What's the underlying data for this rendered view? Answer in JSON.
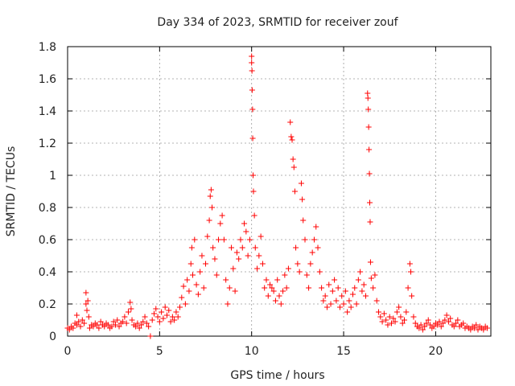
{
  "chart_data": {
    "type": "scatter",
    "title": "Day 334 of 2023, SRMTID for receiver zouf",
    "xlabel": "GPS time / hours",
    "ylabel": "SRMTID / TECUs",
    "xlim": [
      0,
      23
    ],
    "ylim": [
      0,
      1.8
    ],
    "grid": true,
    "marker": "+",
    "series_color": "#ff0000",
    "x_ticks": [
      {
        "value": 0,
        "label": "0"
      },
      {
        "value": 5,
        "label": "5"
      },
      {
        "value": 10,
        "label": "10"
      },
      {
        "value": 15,
        "label": "15"
      },
      {
        "value": 20,
        "label": "20"
      }
    ],
    "y_ticks": [
      {
        "value": 0,
        "label": "0"
      },
      {
        "value": 0.2,
        "label": "0.2"
      },
      {
        "value": 0.4,
        "label": "0.4"
      },
      {
        "value": 0.6,
        "label": "0.6"
      },
      {
        "value": 0.8,
        "label": "0.8"
      },
      {
        "value": 1.0,
        "label": "1"
      },
      {
        "value": 1.2,
        "label": "1.2"
      },
      {
        "value": 1.4,
        "label": "1.4"
      },
      {
        "value": 1.6,
        "label": "1.6"
      },
      {
        "value": 1.8,
        "label": "1.8"
      }
    ],
    "series": [
      {
        "name": "SRMTID",
        "points": [
          [
            0.0,
            0.05
          ],
          [
            0.1,
            0.04
          ],
          [
            0.2,
            0.06
          ],
          [
            0.3,
            0.05
          ],
          [
            0.4,
            0.08
          ],
          [
            0.5,
            0.07
          ],
          [
            0.5,
            0.13
          ],
          [
            0.6,
            0.09
          ],
          [
            0.7,
            0.06
          ],
          [
            0.8,
            0.1
          ],
          [
            0.9,
            0.08
          ],
          [
            1.0,
            0.27
          ],
          [
            1.0,
            0.2
          ],
          [
            1.05,
            0.16
          ],
          [
            1.1,
            0.22
          ],
          [
            1.15,
            0.12
          ],
          [
            1.2,
            0.05
          ],
          [
            1.3,
            0.07
          ],
          [
            1.4,
            0.06
          ],
          [
            1.5,
            0.08
          ],
          [
            1.6,
            0.07
          ],
          [
            1.7,
            0.05
          ],
          [
            1.8,
            0.09
          ],
          [
            1.9,
            0.07
          ],
          [
            2.0,
            0.06
          ],
          [
            2.1,
            0.08
          ],
          [
            2.2,
            0.07
          ],
          [
            2.3,
            0.05
          ],
          [
            2.4,
            0.06
          ],
          [
            2.5,
            0.09
          ],
          [
            2.6,
            0.07
          ],
          [
            2.7,
            0.1
          ],
          [
            2.8,
            0.06
          ],
          [
            2.9,
            0.08
          ],
          [
            3.0,
            0.09
          ],
          [
            3.1,
            0.12
          ],
          [
            3.2,
            0.08
          ],
          [
            3.3,
            0.15
          ],
          [
            3.4,
            0.21
          ],
          [
            3.45,
            0.17
          ],
          [
            3.5,
            0.1
          ],
          [
            3.6,
            0.07
          ],
          [
            3.7,
            0.06
          ],
          [
            3.8,
            0.08
          ],
          [
            3.9,
            0.05
          ],
          [
            4.0,
            0.07
          ],
          [
            4.1,
            0.09
          ],
          [
            4.2,
            0.12
          ],
          [
            4.3,
            0.08
          ],
          [
            4.4,
            0.06
          ],
          [
            4.5,
            0.0
          ],
          [
            4.6,
            0.1
          ],
          [
            4.7,
            0.14
          ],
          [
            4.8,
            0.17
          ],
          [
            4.9,
            0.12
          ],
          [
            5.0,
            0.09
          ],
          [
            5.1,
            0.15
          ],
          [
            5.2,
            0.11
          ],
          [
            5.3,
            0.18
          ],
          [
            5.4,
            0.13
          ],
          [
            5.5,
            0.16
          ],
          [
            5.6,
            0.09
          ],
          [
            5.7,
            0.12
          ],
          [
            5.8,
            0.1
          ],
          [
            5.9,
            0.15
          ],
          [
            6.0,
            0.12
          ],
          [
            6.1,
            0.18
          ],
          [
            6.2,
            0.24
          ],
          [
            6.3,
            0.31
          ],
          [
            6.4,
            0.2
          ],
          [
            6.5,
            0.35
          ],
          [
            6.6,
            0.28
          ],
          [
            6.7,
            0.45
          ],
          [
            6.75,
            0.55
          ],
          [
            6.8,
            0.38
          ],
          [
            6.9,
            0.6
          ],
          [
            7.0,
            0.32
          ],
          [
            7.1,
            0.26
          ],
          [
            7.2,
            0.4
          ],
          [
            7.3,
            0.5
          ],
          [
            7.4,
            0.3
          ],
          [
            7.5,
            0.45
          ],
          [
            7.6,
            0.62
          ],
          [
            7.7,
            0.72
          ],
          [
            7.75,
            0.87
          ],
          [
            7.8,
            0.91
          ],
          [
            7.85,
            0.8
          ],
          [
            7.9,
            0.55
          ],
          [
            8.0,
            0.48
          ],
          [
            8.1,
            0.38
          ],
          [
            8.2,
            0.6
          ],
          [
            8.3,
            0.7
          ],
          [
            8.4,
            0.75
          ],
          [
            8.5,
            0.6
          ],
          [
            8.6,
            0.35
          ],
          [
            8.7,
            0.2
          ],
          [
            8.8,
            0.3
          ],
          [
            8.9,
            0.55
          ],
          [
            9.0,
            0.42
          ],
          [
            9.1,
            0.28
          ],
          [
            9.2,
            0.52
          ],
          [
            9.3,
            0.48
          ],
          [
            9.4,
            0.6
          ],
          [
            9.5,
            0.55
          ],
          [
            9.6,
            0.7
          ],
          [
            9.7,
            0.65
          ],
          [
            9.8,
            0.5
          ],
          [
            9.9,
            0.6
          ],
          [
            10.0,
            1.74
          ],
          [
            10.0,
            1.7
          ],
          [
            10.02,
            1.65
          ],
          [
            10.03,
            1.53
          ],
          [
            10.05,
            1.41
          ],
          [
            10.06,
            1.23
          ],
          [
            10.08,
            1.0
          ],
          [
            10.1,
            0.9
          ],
          [
            10.15,
            0.75
          ],
          [
            10.2,
            0.55
          ],
          [
            10.3,
            0.42
          ],
          [
            10.4,
            0.5
          ],
          [
            10.5,
            0.62
          ],
          [
            10.6,
            0.45
          ],
          [
            10.7,
            0.3
          ],
          [
            10.8,
            0.35
          ],
          [
            10.9,
            0.25
          ],
          [
            11.0,
            0.32
          ],
          [
            11.1,
            0.3
          ],
          [
            11.2,
            0.28
          ],
          [
            11.3,
            0.22
          ],
          [
            11.4,
            0.35
          ],
          [
            11.5,
            0.25
          ],
          [
            11.6,
            0.2
          ],
          [
            11.7,
            0.28
          ],
          [
            11.8,
            0.38
          ],
          [
            11.9,
            0.3
          ],
          [
            12.0,
            0.42
          ],
          [
            12.1,
            1.33
          ],
          [
            12.15,
            1.24
          ],
          [
            12.2,
            1.22
          ],
          [
            12.25,
            1.1
          ],
          [
            12.3,
            1.05
          ],
          [
            12.35,
            0.9
          ],
          [
            12.4,
            0.55
          ],
          [
            12.5,
            0.45
          ],
          [
            12.6,
            0.4
          ],
          [
            12.7,
            0.95
          ],
          [
            12.75,
            0.85
          ],
          [
            12.8,
            0.72
          ],
          [
            12.9,
            0.6
          ],
          [
            13.0,
            0.38
          ],
          [
            13.1,
            0.3
          ],
          [
            13.2,
            0.45
          ],
          [
            13.3,
            0.52
          ],
          [
            13.4,
            0.6
          ],
          [
            13.5,
            0.68
          ],
          [
            13.6,
            0.55
          ],
          [
            13.7,
            0.4
          ],
          [
            13.8,
            0.3
          ],
          [
            13.9,
            0.22
          ],
          [
            14.0,
            0.25
          ],
          [
            14.1,
            0.18
          ],
          [
            14.2,
            0.32
          ],
          [
            14.3,
            0.2
          ],
          [
            14.4,
            0.28
          ],
          [
            14.5,
            0.35
          ],
          [
            14.6,
            0.22
          ],
          [
            14.7,
            0.3
          ],
          [
            14.8,
            0.18
          ],
          [
            14.9,
            0.25
          ],
          [
            15.0,
            0.2
          ],
          [
            15.1,
            0.28
          ],
          [
            15.2,
            0.15
          ],
          [
            15.3,
            0.22
          ],
          [
            15.4,
            0.18
          ],
          [
            15.5,
            0.26
          ],
          [
            15.6,
            0.3
          ],
          [
            15.7,
            0.2
          ],
          [
            15.8,
            0.35
          ],
          [
            15.9,
            0.4
          ],
          [
            16.0,
            0.28
          ],
          [
            16.1,
            0.32
          ],
          [
            16.2,
            0.25
          ],
          [
            16.3,
            1.51
          ],
          [
            16.32,
            1.48
          ],
          [
            16.34,
            1.41
          ],
          [
            16.36,
            1.3
          ],
          [
            16.38,
            1.16
          ],
          [
            16.4,
            1.01
          ],
          [
            16.42,
            0.83
          ],
          [
            16.44,
            0.71
          ],
          [
            16.46,
            0.46
          ],
          [
            16.5,
            0.36
          ],
          [
            16.6,
            0.3
          ],
          [
            16.7,
            0.38
          ],
          [
            16.8,
            0.22
          ],
          [
            16.9,
            0.15
          ],
          [
            17.0,
            0.12
          ],
          [
            17.1,
            0.09
          ],
          [
            17.2,
            0.14
          ],
          [
            17.3,
            0.1
          ],
          [
            17.4,
            0.07
          ],
          [
            17.5,
            0.12
          ],
          [
            17.6,
            0.08
          ],
          [
            17.7,
            0.11
          ],
          [
            17.8,
            0.09
          ],
          [
            17.9,
            0.15
          ],
          [
            18.0,
            0.18
          ],
          [
            18.1,
            0.12
          ],
          [
            18.2,
            0.08
          ],
          [
            18.3,
            0.1
          ],
          [
            18.4,
            0.15
          ],
          [
            18.5,
            0.3
          ],
          [
            18.6,
            0.45
          ],
          [
            18.65,
            0.4
          ],
          [
            18.7,
            0.25
          ],
          [
            18.8,
            0.12
          ],
          [
            18.9,
            0.08
          ],
          [
            19.0,
            0.06
          ],
          [
            19.1,
            0.05
          ],
          [
            19.2,
            0.07
          ],
          [
            19.3,
            0.04
          ],
          [
            19.4,
            0.06
          ],
          [
            19.5,
            0.08
          ],
          [
            19.6,
            0.1
          ],
          [
            19.7,
            0.07
          ],
          [
            19.8,
            0.05
          ],
          [
            19.9,
            0.06
          ],
          [
            20.0,
            0.08
          ],
          [
            20.1,
            0.07
          ],
          [
            20.2,
            0.09
          ],
          [
            20.3,
            0.06
          ],
          [
            20.4,
            0.08
          ],
          [
            20.5,
            0.1
          ],
          [
            20.6,
            0.13
          ],
          [
            20.7,
            0.09
          ],
          [
            20.8,
            0.11
          ],
          [
            20.9,
            0.07
          ],
          [
            21.0,
            0.06
          ],
          [
            21.1,
            0.08
          ],
          [
            21.2,
            0.1
          ],
          [
            21.3,
            0.06
          ],
          [
            21.4,
            0.07
          ],
          [
            21.5,
            0.08
          ],
          [
            21.6,
            0.05
          ],
          [
            21.7,
            0.06
          ],
          [
            21.8,
            0.05
          ],
          [
            21.9,
            0.04
          ],
          [
            22.0,
            0.06
          ],
          [
            22.1,
            0.05
          ],
          [
            22.2,
            0.07
          ],
          [
            22.3,
            0.04
          ],
          [
            22.4,
            0.06
          ],
          [
            22.5,
            0.05
          ],
          [
            22.6,
            0.04
          ],
          [
            22.7,
            0.06
          ],
          [
            22.8,
            0.05
          ]
        ]
      }
    ]
  }
}
